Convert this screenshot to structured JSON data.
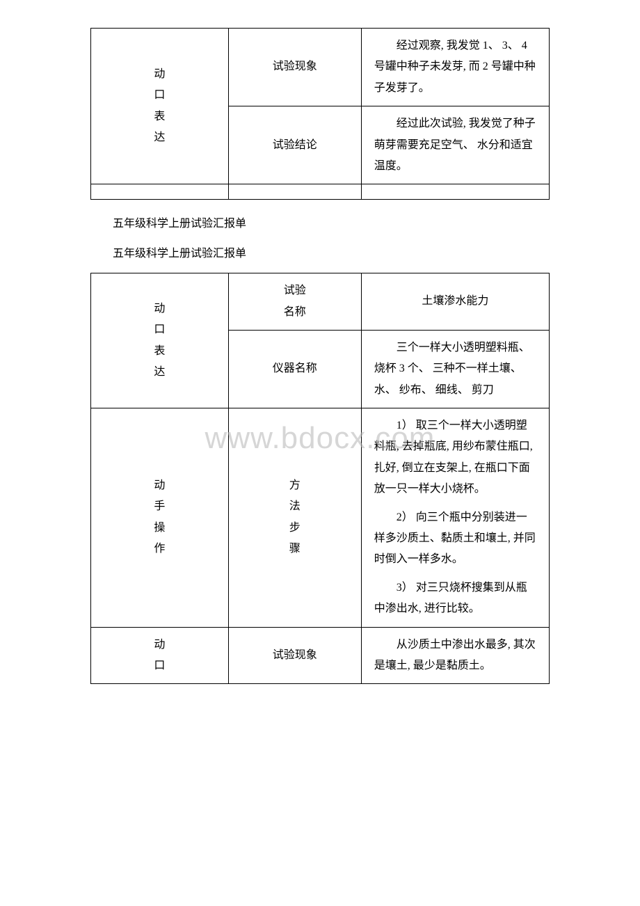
{
  "watermark": "www.bdocx.com",
  "subtitle1": "五年级科学上册试验汇报单",
  "subtitle2": "五年级科学上册试验汇报单",
  "table1": {
    "leftLabel": "动\n口\n表\n达",
    "row1": {
      "label": "试验现象",
      "content": "经过观察, 我发觉 1、 3、 4 号罐中种子未发芽, 而 2 号罐中种子发芽了。"
    },
    "row2": {
      "label": "试验结论",
      "content": "经过此次试验, 我发觉了种子萌芽需要充足空气、 水分和适宜温度。"
    }
  },
  "table2": {
    "section1": {
      "leftLabel": "动\n口\n表\n达",
      "row1": {
        "label1": "试验",
        "label2": "名称",
        "content": "土壤渗水能力"
      },
      "row2": {
        "label": "仪器名称",
        "content": "三个一样大小透明塑料瓶、 烧杯 3 个、 三种不一样土壤、水、 纱布、 细线、 剪刀"
      }
    },
    "section2": {
      "leftLabel": "动\n手\n操\n作",
      "middleLabel": "方\n法\n步\n骤",
      "step1": "1） 取三个一样大小透明塑料瓶, 去掉瓶底, 用纱布蒙住瓶口, 扎好, 倒立在支架上, 在瓶口下面放一只一样大小烧杯。",
      "step2": "2） 向三个瓶中分别装进一样多沙质土、黏质土和壤土, 并同时倒入一样多水。",
      "step3": "3） 对三只烧杯搜集到从瓶中渗出水, 进行比较。"
    },
    "section3": {
      "leftLabel": "动\n口",
      "row1": {
        "label": "试验现象",
        "content": "从沙质土中渗出水最多, 其次是壤土, 最少是黏质土。"
      }
    }
  }
}
